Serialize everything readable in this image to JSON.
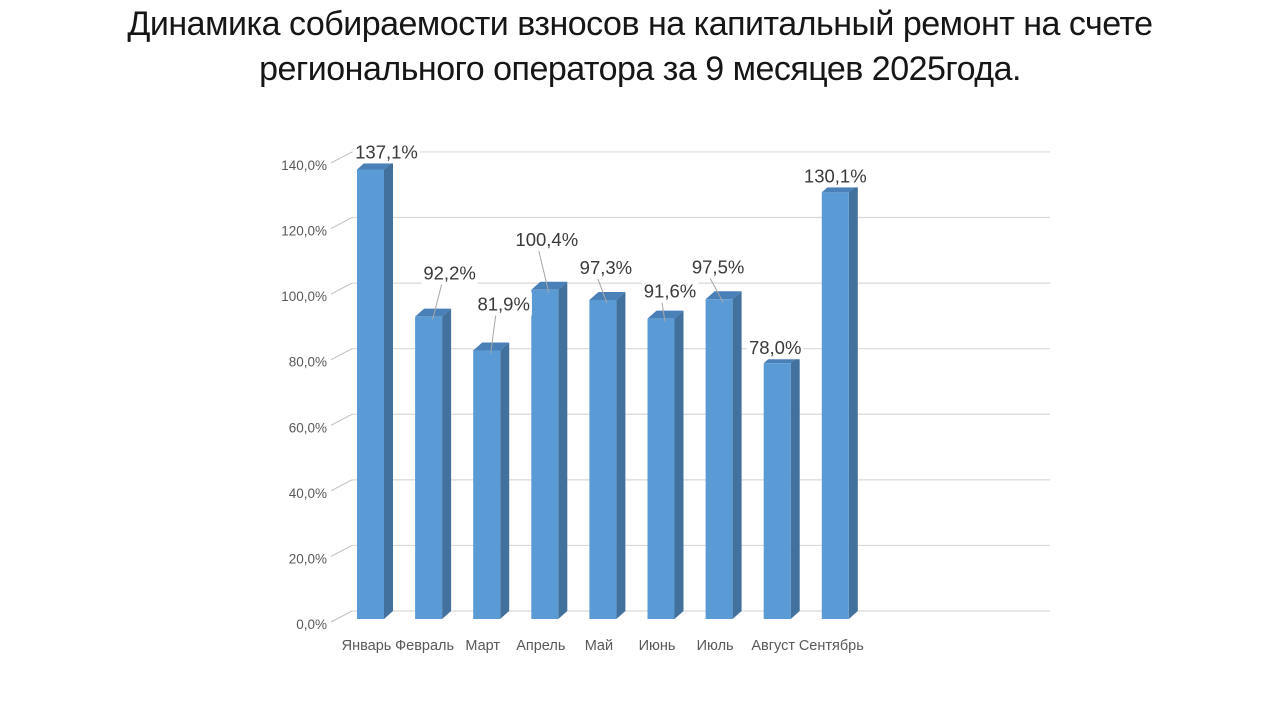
{
  "slide": {
    "title_line1": "Динамика собираемости взносов на капитальный ремонт на счете",
    "title_line2": "регионального оператора за 9 месяцев 2025года."
  },
  "chart_data": {
    "type": "bar",
    "style": "3d-column",
    "title": "Динамика собираемости взносов на капитальный ремонт на счете регионального оператора за 9 месяцев 2025года.",
    "categories": [
      "Январь",
      "Февраль",
      "Март",
      "Апрель",
      "Май",
      "Июнь",
      "Июль",
      "Август",
      "Сентябрь"
    ],
    "values": [
      137.1,
      92.2,
      81.9,
      100.4,
      97.3,
      91.6,
      97.5,
      78.0,
      130.1
    ],
    "data_labels": [
      "137,1%",
      "92,2%",
      "81,9%",
      "100,4%",
      "97,3%",
      "91,6%",
      "97,5%",
      "78,0%",
      "130,1%"
    ],
    "y_ticks": [
      "0,0%",
      "20,0%",
      "40,0%",
      "60,0%",
      "80,0%",
      "100,0%",
      "120,0%",
      "140,0%"
    ],
    "y_tick_values": [
      0,
      20,
      40,
      60,
      80,
      100,
      120,
      140
    ],
    "ylim": [
      0,
      140
    ],
    "xlabel": "",
    "ylabel": "",
    "grid": true,
    "legend": "none",
    "colors": {
      "bar_front": "#5B9BD5",
      "bar_side": "#41719C",
      "bar_top": "#4A80B8",
      "gridline": "#D9D9D9",
      "tick_leader": "#BFBFBF",
      "axis_text": "#595959",
      "data_label_text": "#3A3A3A",
      "leader_line": "#A6A6A6",
      "background": "#FFFFFF",
      "title_text": "#161616"
    }
  }
}
